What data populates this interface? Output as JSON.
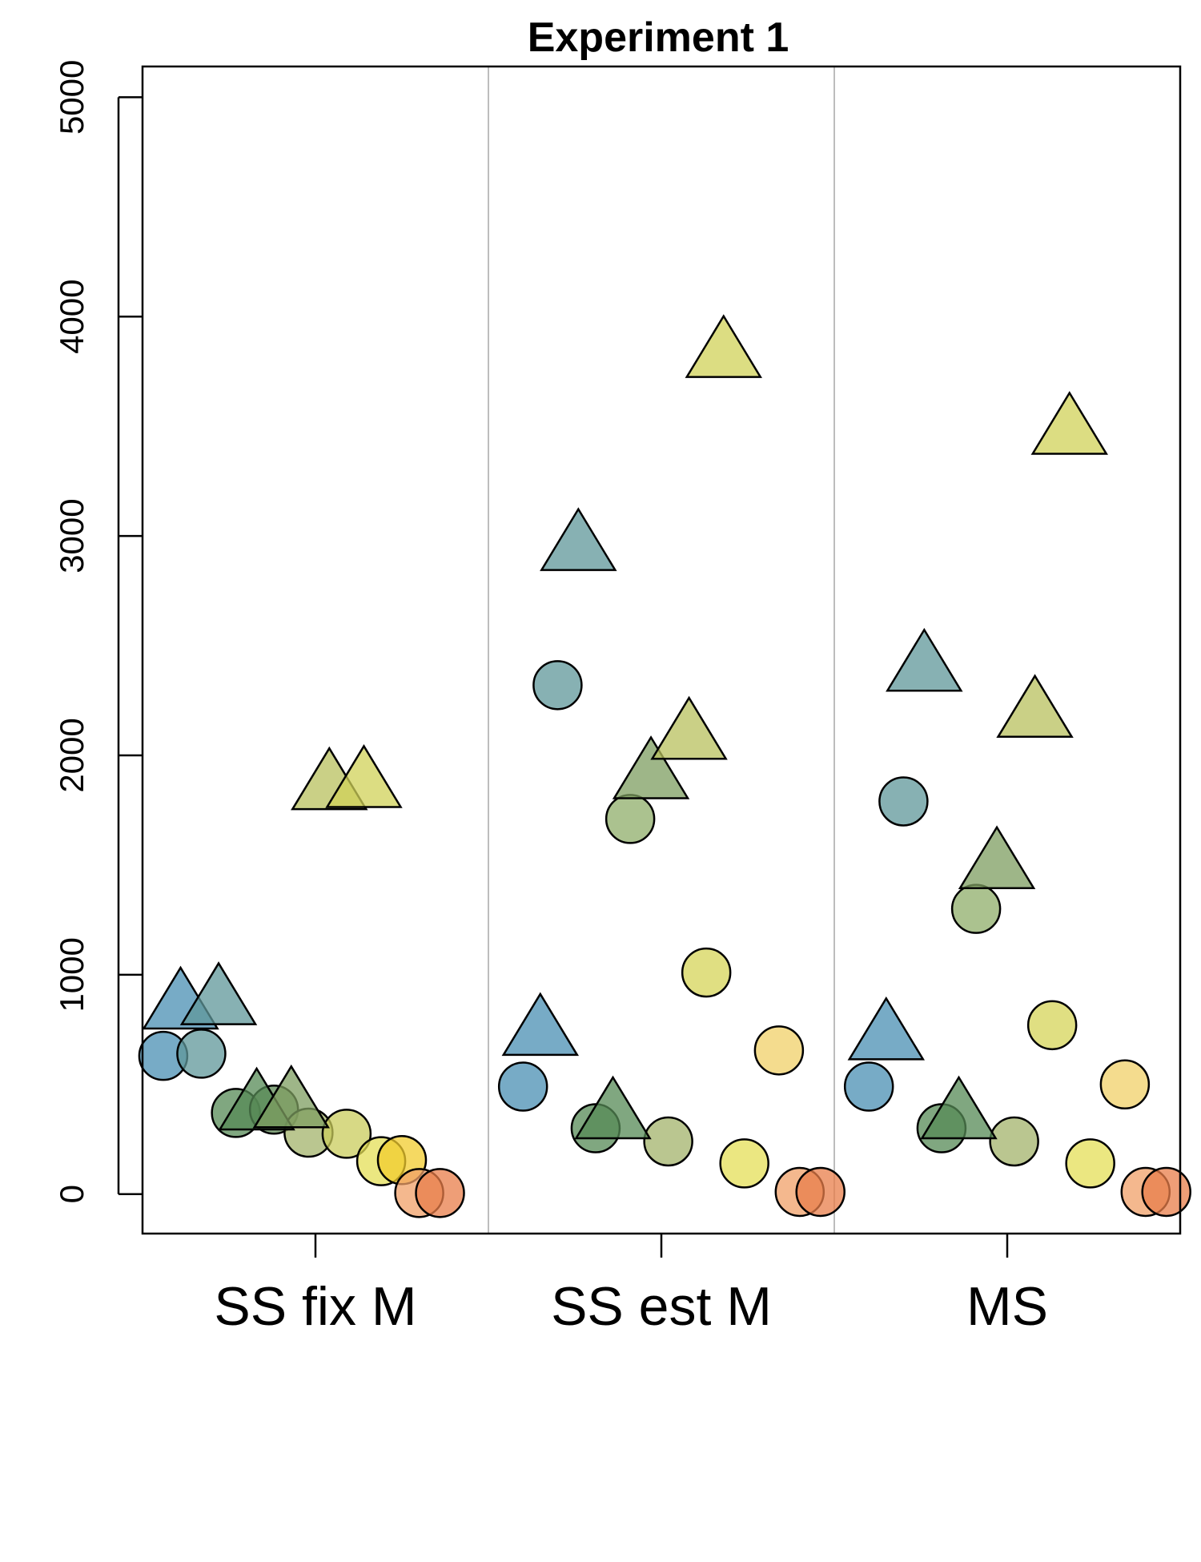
{
  "chart_data": {
    "type": "scatter",
    "title": "Experiment 1",
    "xlabel": "",
    "ylabel": "",
    "categories": [
      "SS fix M",
      "SS est M",
      "MS"
    ],
    "ylim": [
      -180,
      5140
    ],
    "yticks": [
      0,
      1000,
      2000,
      3000,
      4000,
      5000
    ],
    "grid": false,
    "separators": true,
    "legend": "none",
    "colors": [
      "#4a8fb3",
      "#5f9799",
      "#558a55",
      "#a3b36b",
      "#c9cc5c",
      "#e4df57",
      "#f0d068",
      "#e87d4a"
    ],
    "points": [
      {
        "group": 1,
        "pos": 0.06,
        "value": 630,
        "shape": "circle",
        "fill": "#4a8fb3"
      },
      {
        "group": 1,
        "pos": 0.17,
        "value": 640,
        "shape": "circle",
        "fill": "#5f9799"
      },
      {
        "group": 1,
        "pos": 0.27,
        "value": 370,
        "shape": "circle",
        "fill": "#558a55"
      },
      {
        "group": 1,
        "pos": 0.38,
        "value": 385,
        "shape": "circle",
        "fill": "#5e8a55"
      },
      {
        "group": 1,
        "pos": 0.48,
        "value": 280,
        "shape": "circle",
        "fill": "#a3b36b"
      },
      {
        "group": 1,
        "pos": 0.59,
        "value": 275,
        "shape": "circle",
        "fill": "#c9cc5c"
      },
      {
        "group": 1,
        "pos": 0.69,
        "value": 150,
        "shape": "circle",
        "fill": "#e4df57"
      },
      {
        "group": 1,
        "pos": 0.75,
        "value": 155,
        "shape": "circle",
        "fill": "#f2cc2e"
      },
      {
        "group": 1,
        "pos": 0.8,
        "value": 5,
        "shape": "circle",
        "fill": "#f0a068"
      },
      {
        "group": 1,
        "pos": 0.86,
        "value": 5,
        "shape": "circle",
        "fill": "#e87d4a"
      },
      {
        "group": 1,
        "pos": 0.11,
        "value": 860,
        "shape": "triangle",
        "fill": "#4a8fb3"
      },
      {
        "group": 1,
        "pos": 0.22,
        "value": 880,
        "shape": "triangle",
        "fill": "#5f9799"
      },
      {
        "group": 1,
        "pos": 0.33,
        "value": 400,
        "shape": "triangle",
        "fill": "#558a55"
      },
      {
        "group": 1,
        "pos": 0.43,
        "value": 410,
        "shape": "triangle",
        "fill": "#7d9e60"
      },
      {
        "group": 1,
        "pos": 0.54,
        "value": 1860,
        "shape": "triangle",
        "fill": "#b8c05e"
      },
      {
        "group": 1,
        "pos": 0.64,
        "value": 1870,
        "shape": "triangle",
        "fill": "#d0d158"
      },
      {
        "group": 2,
        "pos": 0.1,
        "value": 490,
        "shape": "circle",
        "fill": "#4a8fb3"
      },
      {
        "group": 2,
        "pos": 0.2,
        "value": 2320,
        "shape": "circle",
        "fill": "#5f9799"
      },
      {
        "group": 2,
        "pos": 0.31,
        "value": 300,
        "shape": "circle",
        "fill": "#558a55"
      },
      {
        "group": 2,
        "pos": 0.41,
        "value": 1710,
        "shape": "circle",
        "fill": "#8fae6a"
      },
      {
        "group": 2,
        "pos": 0.52,
        "value": 240,
        "shape": "circle",
        "fill": "#a3b36b"
      },
      {
        "group": 2,
        "pos": 0.63,
        "value": 1010,
        "shape": "circle",
        "fill": "#d5d458"
      },
      {
        "group": 2,
        "pos": 0.74,
        "value": 140,
        "shape": "circle",
        "fill": "#e4df57"
      },
      {
        "group": 2,
        "pos": 0.84,
        "value": 655,
        "shape": "circle",
        "fill": "#f0d068"
      },
      {
        "group": 2,
        "pos": 0.9,
        "value": 10,
        "shape": "circle",
        "fill": "#f0a068"
      },
      {
        "group": 2,
        "pos": 0.96,
        "value": 10,
        "shape": "circle",
        "fill": "#e87d4a"
      },
      {
        "group": 2,
        "pos": 0.15,
        "value": 740,
        "shape": "triangle",
        "fill": "#4a8fb3"
      },
      {
        "group": 2,
        "pos": 0.26,
        "value": 2950,
        "shape": "triangle",
        "fill": "#5f9799"
      },
      {
        "group": 2,
        "pos": 0.36,
        "value": 360,
        "shape": "triangle",
        "fill": "#558a55"
      },
      {
        "group": 2,
        "pos": 0.47,
        "value": 1910,
        "shape": "triangle",
        "fill": "#7d9e60"
      },
      {
        "group": 2,
        "pos": 0.58,
        "value": 2090,
        "shape": "triangle",
        "fill": "#b8c05e"
      },
      {
        "group": 2,
        "pos": 0.68,
        "value": 3830,
        "shape": "triangle",
        "fill": "#d0d158"
      },
      {
        "group": 3,
        "pos": 0.1,
        "value": 490,
        "shape": "circle",
        "fill": "#4a8fb3"
      },
      {
        "group": 3,
        "pos": 0.2,
        "value": 1790,
        "shape": "circle",
        "fill": "#5f9799"
      },
      {
        "group": 3,
        "pos": 0.31,
        "value": 300,
        "shape": "circle",
        "fill": "#558a55"
      },
      {
        "group": 3,
        "pos": 0.41,
        "value": 1300,
        "shape": "circle",
        "fill": "#8fae6a"
      },
      {
        "group": 3,
        "pos": 0.52,
        "value": 240,
        "shape": "circle",
        "fill": "#a3b36b"
      },
      {
        "group": 3,
        "pos": 0.63,
        "value": 770,
        "shape": "circle",
        "fill": "#d5d458"
      },
      {
        "group": 3,
        "pos": 0.74,
        "value": 140,
        "shape": "circle",
        "fill": "#e4df57"
      },
      {
        "group": 3,
        "pos": 0.84,
        "value": 500,
        "shape": "circle",
        "fill": "#f0d068"
      },
      {
        "group": 3,
        "pos": 0.9,
        "value": 10,
        "shape": "circle",
        "fill": "#f0a068"
      },
      {
        "group": 3,
        "pos": 0.96,
        "value": 10,
        "shape": "circle",
        "fill": "#e87d4a"
      },
      {
        "group": 3,
        "pos": 0.15,
        "value": 720,
        "shape": "triangle",
        "fill": "#4a8fb3"
      },
      {
        "group": 3,
        "pos": 0.26,
        "value": 2400,
        "shape": "triangle",
        "fill": "#5f9799"
      },
      {
        "group": 3,
        "pos": 0.36,
        "value": 360,
        "shape": "triangle",
        "fill": "#558a55"
      },
      {
        "group": 3,
        "pos": 0.47,
        "value": 1500,
        "shape": "triangle",
        "fill": "#7d9e60"
      },
      {
        "group": 3,
        "pos": 0.58,
        "value": 2190,
        "shape": "triangle",
        "fill": "#b8c05e"
      },
      {
        "group": 3,
        "pos": 0.68,
        "value": 3480,
        "shape": "triangle",
        "fill": "#d0d158"
      }
    ]
  }
}
